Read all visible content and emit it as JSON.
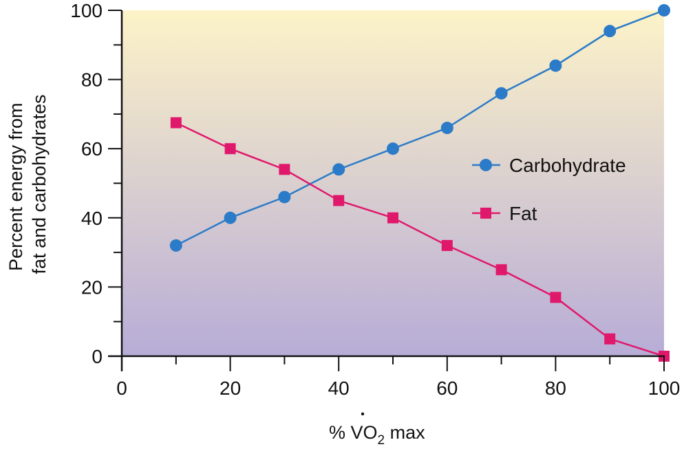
{
  "chart_data": {
    "type": "line",
    "title": "",
    "xlabel": "% VO2 max",
    "xlabel_parts": {
      "prefix": "% ",
      "main": "V",
      "dot": "·",
      "main2": "O",
      "sub": "2",
      "suffix": " max"
    },
    "ylabel_lines": [
      "Percent energy from",
      "fat and carbohydrates"
    ],
    "xlim": [
      0,
      100
    ],
    "ylim": [
      0,
      100
    ],
    "x_ticks_major": [
      0,
      20,
      40,
      60,
      80,
      100
    ],
    "x_tick_labels": [
      "0",
      "20",
      "40",
      "60",
      "80",
      "100"
    ],
    "x_ticks_minor": [
      10,
      30,
      50,
      70,
      90
    ],
    "y_ticks_major": [
      0,
      20,
      40,
      60,
      80,
      100
    ],
    "y_tick_labels": [
      "0",
      "20",
      "40",
      "60",
      "80",
      "100"
    ],
    "y_ticks_minor": [
      10,
      30,
      50,
      70,
      90
    ],
    "grid": false,
    "background": {
      "top_color": "#fdf3c8",
      "bottom_color": "#b7acd6"
    },
    "legend_position": "center-right",
    "x": [
      10,
      20,
      30,
      40,
      50,
      60,
      70,
      80,
      90,
      100
    ],
    "series": [
      {
        "name": "Carbohydrate",
        "marker": "circle",
        "color": "#2b7bc8",
        "values": [
          32,
          40,
          46,
          54,
          60,
          66,
          76,
          84,
          94,
          100
        ]
      },
      {
        "name": "Fat",
        "marker": "square",
        "color": "#e0186c",
        "values": [
          67.5,
          60,
          54,
          45,
          40,
          32,
          25,
          17,
          5,
          0
        ]
      }
    ]
  }
}
